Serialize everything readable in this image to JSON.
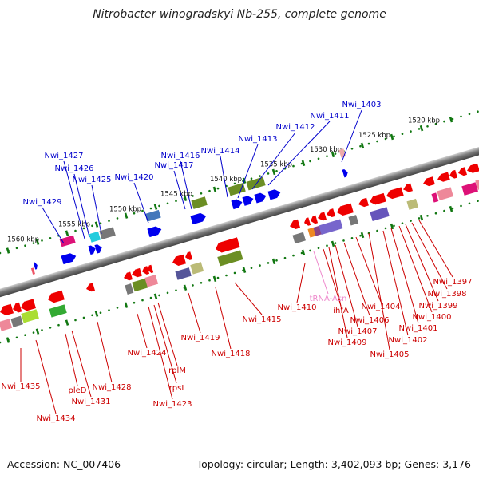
{
  "title": "Nitrobacter winogradskyi Nb-255, complete genome",
  "accession_text": "Accession: NC_007406",
  "topology_text": "Topology: circular; Length: 3,402,093 bp; Genes: 3,176",
  "ruler_labels": [
    "1520 kbp",
    "1525 kbp",
    "1530 kbp",
    "1535 kbp",
    "1540 kbp",
    "1545 kbp",
    "1550 kbp",
    "1555 kbp",
    "1560 kbp"
  ],
  "gene_labels_top": [
    "Nwi_1403",
    "Nwi_1411",
    "Nwi_1412",
    "Nwi_1413",
    "Nwi_1414",
    "Nwi_1416",
    "Nwi_1417",
    "Nwi_1420",
    "Nwi_1425",
    "Nwi_1426",
    "Nwi_1427",
    "Nwi_1429"
  ],
  "gene_labels_bottom": [
    "Nwi_1397",
    "Nwi_1398",
    "Nwi_1399",
    "Nwi_1400",
    "Nwi_1401",
    "Nwi_1402",
    "Nwi_1404",
    "Nwi_1405",
    "Nwi_1406",
    "Nwi_1407",
    "Nwi_1409",
    "ihfA",
    "tRNA-Asn",
    "Nwi_1410",
    "Nwi_1415",
    "Nwi_1418",
    "Nwi_1419",
    "rplM",
    "rpsI",
    "Nwi_1423",
    "Nwi_1424",
    "Nwi_1428",
    "Nwi_1431",
    "pleD",
    "Nwi_1434",
    "Nwi_1435"
  ],
  "colors": {
    "top_label": "#0000cc",
    "bottom_label": "#cc0000",
    "trna_label": "#ee88cc",
    "forward_gene": "#0000ee",
    "reverse_gene": "#ee0000",
    "ruler_tick": "#117711",
    "backbone": "#777777"
  }
}
